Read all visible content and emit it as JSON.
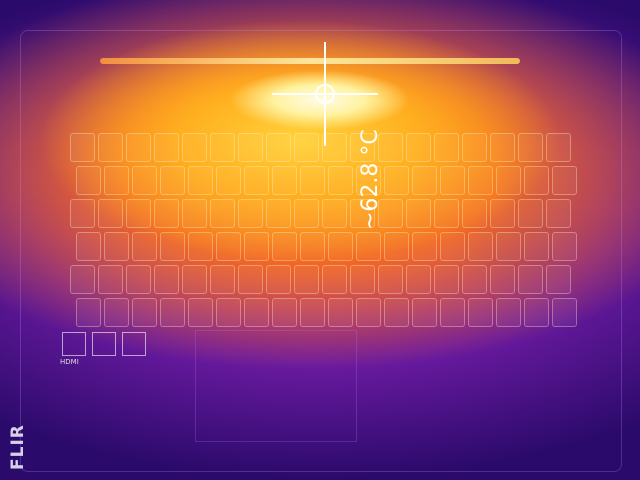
{
  "measurement": {
    "spot_temperature": "~62.8 °C"
  },
  "logo": {
    "text": "FLIR"
  },
  "labels": {
    "port": "HDMI"
  },
  "palette": {
    "hot": "#fffbe8",
    "warm": "#ffb020",
    "mid": "#f36a20",
    "cool": "#6a1aa0",
    "cold": "#1a0550"
  }
}
